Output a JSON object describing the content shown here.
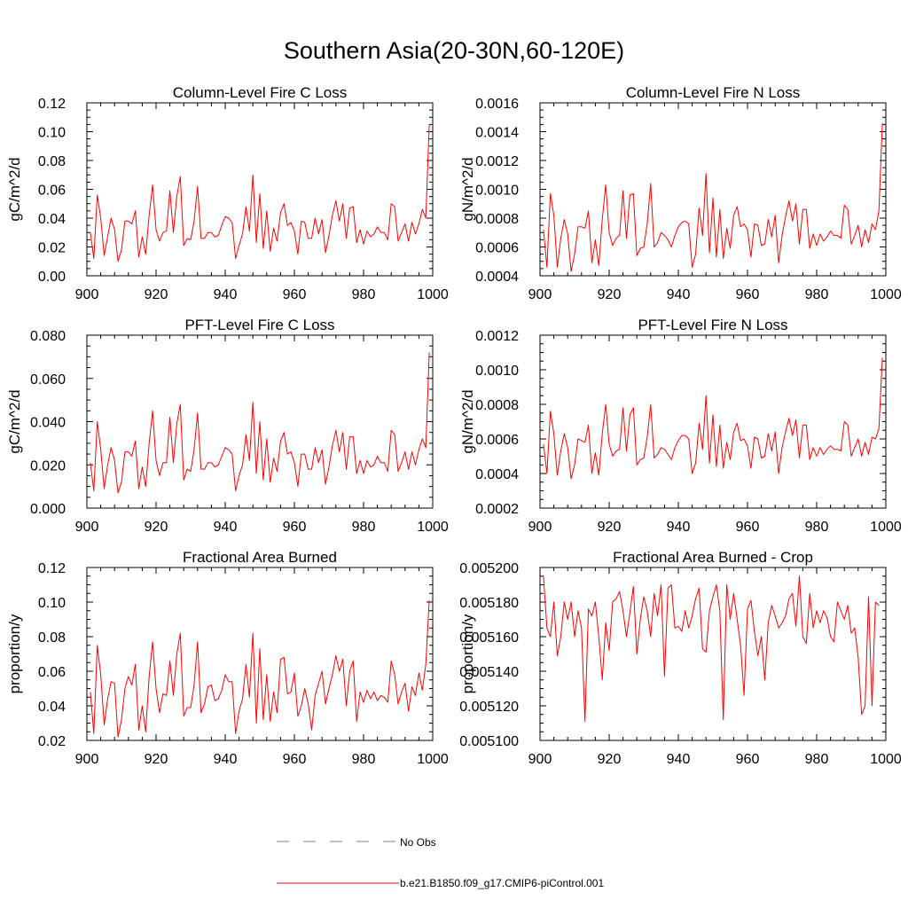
{
  "page_title": "Southern Asia(20-30N,60-120E)",
  "colors": {
    "model_line": "#ff0000",
    "obs_line": "#7777cc",
    "axis": "#000000"
  },
  "legend": {
    "entries": [
      {
        "label": "No Obs",
        "style": "dashed",
        "color": "#7777cc"
      },
      {
        "label": "b.e21.B1850.f09_g17.CMIP6-piControl.001",
        "style": "solid",
        "color": "#ff0000"
      }
    ]
  },
  "chart_data": [
    {
      "type": "line",
      "title": "Column-Level Fire C Loss",
      "xlabel": "",
      "ylabel": "gC/m^2/d",
      "xlim": [
        900,
        1000
      ],
      "ylim": [
        0,
        0.12
      ],
      "xticks": [
        "900",
        "920",
        "940",
        "960",
        "980",
        "1000"
      ],
      "yticks": [
        "0.00",
        "0.02",
        "0.04",
        "0.06",
        "0.08",
        "0.10",
        "0.12"
      ],
      "x_start": 901,
      "series": [
        {
          "name": "b.e21.B1850.f09_g17.CMIP6-piControl.001",
          "values": [
            0.03,
            0.012,
            0.056,
            0.04,
            0.014,
            0.027,
            0.04,
            0.032,
            0.01,
            0.018,
            0.038,
            0.038,
            0.036,
            0.045,
            0.013,
            0.027,
            0.015,
            0.042,
            0.063,
            0.032,
            0.024,
            0.03,
            0.031,
            0.059,
            0.03,
            0.055,
            0.069,
            0.021,
            0.026,
            0.025,
            0.038,
            0.062,
            0.026,
            0.026,
            0.03,
            0.03,
            0.027,
            0.028,
            0.035,
            0.041,
            0.04,
            0.037,
            0.012,
            0.021,
            0.029,
            0.048,
            0.031,
            0.07,
            0.023,
            0.057,
            0.019,
            0.045,
            0.017,
            0.033,
            0.024,
            0.044,
            0.05,
            0.035,
            0.037,
            0.031,
            0.015,
            0.038,
            0.037,
            0.026,
            0.026,
            0.04,
            0.029,
            0.039,
            0.016,
            0.028,
            0.042,
            0.052,
            0.038,
            0.05,
            0.026,
            0.047,
            0.048,
            0.023,
            0.032,
            0.022,
            0.031,
            0.027,
            0.029,
            0.034,
            0.03,
            0.03,
            0.025,
            0.05,
            0.048,
            0.024,
            0.03,
            0.036,
            0.024,
            0.037,
            0.029,
            0.036,
            0.046,
            0.04,
            0.105
          ]
        }
      ]
    },
    {
      "type": "line",
      "title": "Column-Level Fire N Loss",
      "xlabel": "",
      "ylabel": "gN/m^2/d",
      "xlim": [
        900,
        1000
      ],
      "ylim": [
        0.0004,
        0.0016
      ],
      "xticks": [
        "900",
        "920",
        "940",
        "960",
        "980",
        "1000"
      ],
      "yticks": [
        "0.0004",
        "0.0006",
        "0.0008",
        "0.0010",
        "0.0012",
        "0.0014",
        "0.0016"
      ],
      "x_start": 901,
      "series": [
        {
          "name": "b.e21.B1850.f09_g17.CMIP6-piControl.001",
          "values": [
            0.00072,
            0.00046,
            0.00097,
            0.00082,
            0.00046,
            0.00066,
            0.00079,
            0.00069,
            0.00043,
            0.00055,
            0.00074,
            0.00074,
            0.00073,
            0.00085,
            0.00049,
            0.00065,
            0.00047,
            0.00079,
            0.00103,
            0.0007,
            0.00061,
            0.00066,
            0.00068,
            0.00099,
            0.00066,
            0.00096,
            0.00097,
            0.00054,
            0.00059,
            0.0006,
            0.00076,
            0.00104,
            0.0006,
            0.00063,
            0.0007,
            0.00068,
            0.00065,
            0.0006,
            0.00068,
            0.00074,
            0.00077,
            0.00078,
            0.00076,
            0.00046,
            0.00055,
            0.00087,
            0.00068,
            0.00111,
            0.00056,
            0.00094,
            0.00053,
            0.00086,
            0.00052,
            0.00073,
            0.00059,
            0.00082,
            0.00088,
            0.00074,
            0.00076,
            0.00072,
            0.00053,
            0.00076,
            0.00075,
            0.00061,
            0.00062,
            0.00079,
            0.00067,
            0.00082,
            0.00049,
            0.00068,
            0.00081,
            0.00092,
            0.00078,
            0.0009,
            0.00062,
            0.00086,
            0.00086,
            0.00059,
            0.00069,
            0.00061,
            0.00069,
            0.00064,
            0.00067,
            0.00071,
            0.00068,
            0.00068,
            0.00066,
            0.00089,
            0.00086,
            0.00062,
            0.00068,
            0.00075,
            0.0006,
            0.00072,
            0.00063,
            0.00076,
            0.00072,
            0.00085,
            0.00146
          ]
        }
      ]
    },
    {
      "type": "line",
      "title": "PFT-Level Fire C Loss",
      "xlabel": "",
      "ylabel": "gC/m^2/d",
      "xlim": [
        900,
        1000
      ],
      "ylim": [
        0,
        0.08
      ],
      "xticks": [
        "900",
        "920",
        "940",
        "960",
        "980",
        "1000"
      ],
      "yticks": [
        "0.000",
        "0.020",
        "0.040",
        "0.060",
        "0.080"
      ],
      "x_start": 901,
      "series": [
        {
          "name": "b.e21.B1850.f09_g17.CMIP6-piControl.001",
          "values": [
            0.021,
            0.008,
            0.04,
            0.027,
            0.009,
            0.02,
            0.028,
            0.022,
            0.007,
            0.012,
            0.026,
            0.026,
            0.024,
            0.031,
            0.009,
            0.019,
            0.01,
            0.03,
            0.045,
            0.022,
            0.015,
            0.021,
            0.021,
            0.042,
            0.021,
            0.039,
            0.048,
            0.013,
            0.018,
            0.017,
            0.027,
            0.044,
            0.018,
            0.018,
            0.021,
            0.021,
            0.019,
            0.02,
            0.024,
            0.028,
            0.027,
            0.025,
            0.008,
            0.015,
            0.02,
            0.034,
            0.022,
            0.049,
            0.016,
            0.04,
            0.013,
            0.032,
            0.012,
            0.023,
            0.017,
            0.031,
            0.035,
            0.025,
            0.026,
            0.021,
            0.01,
            0.025,
            0.025,
            0.018,
            0.018,
            0.028,
            0.021,
            0.027,
            0.011,
            0.019,
            0.029,
            0.036,
            0.026,
            0.035,
            0.018,
            0.033,
            0.033,
            0.016,
            0.022,
            0.016,
            0.022,
            0.019,
            0.02,
            0.024,
            0.021,
            0.021,
            0.017,
            0.036,
            0.034,
            0.017,
            0.021,
            0.026,
            0.018,
            0.026,
            0.02,
            0.027,
            0.032,
            0.028,
            0.072
          ]
        }
      ]
    },
    {
      "type": "line",
      "title": "PFT-Level Fire N Loss",
      "xlabel": "",
      "ylabel": "gN/m^2/d",
      "xlim": [
        900,
        1000
      ],
      "ylim": [
        0.0002,
        0.0012
      ],
      "xticks": [
        "900",
        "920",
        "940",
        "960",
        "980",
        "1000"
      ],
      "yticks": [
        "0.0002",
        "0.0004",
        "0.0006",
        "0.0008",
        "0.0010",
        "0.0012"
      ],
      "x_start": 901,
      "series": [
        {
          "name": "b.e21.B1850.f09_g17.CMIP6-piControl.001",
          "values": [
            0.00057,
            0.0004,
            0.00076,
            0.00063,
            0.00039,
            0.00053,
            0.00063,
            0.00055,
            0.00037,
            0.00045,
            0.0006,
            0.00059,
            0.00058,
            0.00068,
            0.0004,
            0.00052,
            0.00039,
            0.00063,
            0.0008,
            0.00057,
            0.0005,
            0.00053,
            0.00054,
            0.00078,
            0.00053,
            0.00074,
            0.00078,
            0.00045,
            0.00048,
            0.00049,
            0.00061,
            0.0008,
            0.00049,
            0.00051,
            0.00055,
            0.00054,
            0.00051,
            0.00048,
            0.00055,
            0.00059,
            0.00062,
            0.00062,
            0.0006,
            0.0004,
            0.00046,
            0.00069,
            0.00054,
            0.00085,
            0.00046,
            0.00074,
            0.00044,
            0.00068,
            0.00043,
            0.00058,
            0.00048,
            0.00064,
            0.00069,
            0.00059,
            0.0006,
            0.00056,
            0.00043,
            0.00061,
            0.0006,
            0.00049,
            0.0005,
            0.00063,
            0.00053,
            0.00064,
            0.0004,
            0.00055,
            0.00064,
            0.00072,
            0.00062,
            0.00071,
            0.00049,
            0.00068,
            0.00068,
            0.00048,
            0.00055,
            0.0005,
            0.00055,
            0.00051,
            0.00054,
            0.00056,
            0.00054,
            0.00054,
            0.00053,
            0.0007,
            0.00068,
            0.0005,
            0.00055,
            0.0006,
            0.0005,
            0.00058,
            0.00051,
            0.00061,
            0.0006,
            0.00066,
            0.00107
          ]
        }
      ]
    },
    {
      "type": "line",
      "title": "Fractional Area Burned",
      "xlabel": "",
      "ylabel": "proportion/y",
      "xlim": [
        900,
        1000
      ],
      "ylim": [
        0.02,
        0.12
      ],
      "xticks": [
        "900",
        "920",
        "940",
        "960",
        "980",
        "1000"
      ],
      "yticks": [
        "0.02",
        "0.04",
        "0.06",
        "0.08",
        "0.10",
        "0.12"
      ],
      "x_start": 901,
      "series": [
        {
          "name": "b.e21.B1850.f09_g17.CMIP6-piControl.001",
          "values": [
            0.048,
            0.024,
            0.075,
            0.058,
            0.029,
            0.044,
            0.054,
            0.053,
            0.022,
            0.032,
            0.05,
            0.057,
            0.052,
            0.064,
            0.026,
            0.04,
            0.025,
            0.057,
            0.077,
            0.05,
            0.036,
            0.047,
            0.046,
            0.066,
            0.046,
            0.07,
            0.082,
            0.034,
            0.039,
            0.039,
            0.052,
            0.077,
            0.036,
            0.041,
            0.051,
            0.052,
            0.043,
            0.044,
            0.049,
            0.058,
            0.054,
            0.054,
            0.024,
            0.037,
            0.044,
            0.064,
            0.045,
            0.082,
            0.03,
            0.073,
            0.032,
            0.058,
            0.031,
            0.048,
            0.036,
            0.067,
            0.068,
            0.047,
            0.048,
            0.059,
            0.034,
            0.04,
            0.05,
            0.041,
            0.026,
            0.046,
            0.053,
            0.06,
            0.041,
            0.05,
            0.058,
            0.069,
            0.06,
            0.067,
            0.04,
            0.06,
            0.066,
            0.031,
            0.048,
            0.042,
            0.049,
            0.044,
            0.048,
            0.043,
            0.046,
            0.045,
            0.042,
            0.066,
            0.058,
            0.041,
            0.048,
            0.053,
            0.037,
            0.051,
            0.046,
            0.059,
            0.049,
            0.064,
            0.101
          ]
        }
      ]
    },
    {
      "type": "line",
      "title": "Fractional Area Burned - Crop",
      "xlabel": "",
      "ylabel": "proportion/y",
      "xlim": [
        900,
        1000
      ],
      "ylim": [
        0.0051,
        0.0052
      ],
      "xticks": [
        "900",
        "920",
        "940",
        "960",
        "980",
        "1000"
      ],
      "yticks": [
        "0.005100",
        "0.005120",
        "0.005140",
        "0.005160",
        "0.005180",
        "0.005200"
      ],
      "x_start": 901,
      "series": [
        {
          "name": "b.e21.B1850.f09_g17.CMIP6-piControl.001",
          "values": [
            0.005195,
            0.005165,
            0.00516,
            0.00518,
            0.005149,
            0.00516,
            0.00518,
            0.00517,
            0.00518,
            0.00516,
            0.005175,
            0.005165,
            0.005111,
            0.005176,
            0.005172,
            0.00518,
            0.00516,
            0.005135,
            0.005168,
            0.005152,
            0.00518,
            0.005182,
            0.005186,
            0.005175,
            0.00516,
            0.005174,
            0.005189,
            0.00515,
            0.00517,
            0.005183,
            0.005175,
            0.00516,
            0.005185,
            0.005172,
            0.00519,
            0.005137,
            0.005188,
            0.00519,
            0.005165,
            0.005166,
            0.005163,
            0.005175,
            0.005165,
            0.005172,
            0.005182,
            0.005188,
            0.005153,
            0.005151,
            0.005175,
            0.005183,
            0.00519,
            0.005175,
            0.005112,
            0.00519,
            0.00517,
            0.005185,
            0.00517,
            0.005155,
            0.005126,
            0.005176,
            0.005181,
            0.005163,
            0.005149,
            0.00516,
            0.005135,
            0.005168,
            0.005178,
            0.005172,
            0.005165,
            0.005168,
            0.005172,
            0.005182,
            0.005185,
            0.005166,
            0.005195,
            0.00516,
            0.005156,
            0.005185,
            0.005165,
            0.005175,
            0.005168,
            0.005175,
            0.005171,
            0.00516,
            0.005157,
            0.00518,
            0.005175,
            0.00517,
            0.005178,
            0.005162,
            0.005165,
            0.005148,
            0.005115,
            0.00512,
            0.005183,
            0.00512,
            0.00518,
            0.005178
          ]
        }
      ]
    }
  ]
}
